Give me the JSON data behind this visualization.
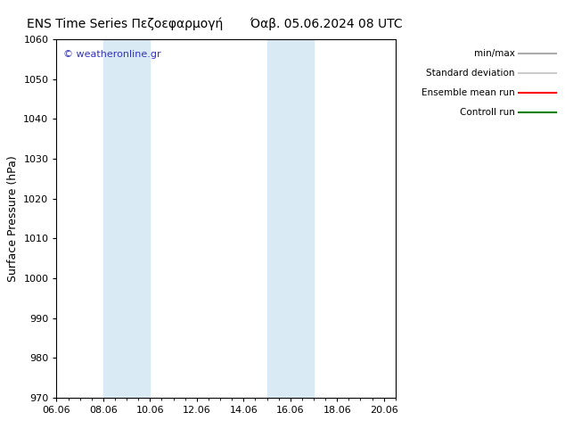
{
  "title": "ENS Time Series Πεζοεφαρμογή       Όαβ. 05.06.2024 08 UTC",
  "title_raw": "ENS Time Series Πεζοεφαρμογή       Όαβ. 05.06.2024 08 UTC",
  "ylabel": "Surface Pressure (hPa)",
  "ylim": [
    970,
    1060
  ],
  "yticks": [
    970,
    980,
    990,
    1000,
    1010,
    1020,
    1030,
    1040,
    1050,
    1060
  ],
  "xtick_labels": [
    "06.06",
    "08.06",
    "10.06",
    "12.06",
    "14.06",
    "16.06",
    "18.06",
    "20.06"
  ],
  "xtick_positions": [
    0,
    2,
    4,
    6,
    8,
    10,
    12,
    14
  ],
  "shaded_regions": [
    {
      "xmin": 2,
      "xmax": 4,
      "color": "#daeaf5"
    },
    {
      "xmin": 9.0,
      "xmax": 11.0,
      "color": "#daeaf5"
    }
  ],
  "watermark_text": "© weatheronline.gr",
  "watermark_color": "#3333bb",
  "legend_entries": [
    {
      "label": "min/max",
      "color": "#aaaaaa",
      "linestyle": "-"
    },
    {
      "label": "Standard deviation",
      "color": "#cccccc",
      "linestyle": "-"
    },
    {
      "label": "Ensemble mean run",
      "color": "red",
      "linestyle": "-"
    },
    {
      "label": "Controll run",
      "color": "green",
      "linestyle": "-"
    }
  ],
  "bg_color": "#ffffff",
  "spine_color": "#000000",
  "title_fontsize": 10,
  "tick_fontsize": 8,
  "ylabel_fontsize": 9
}
